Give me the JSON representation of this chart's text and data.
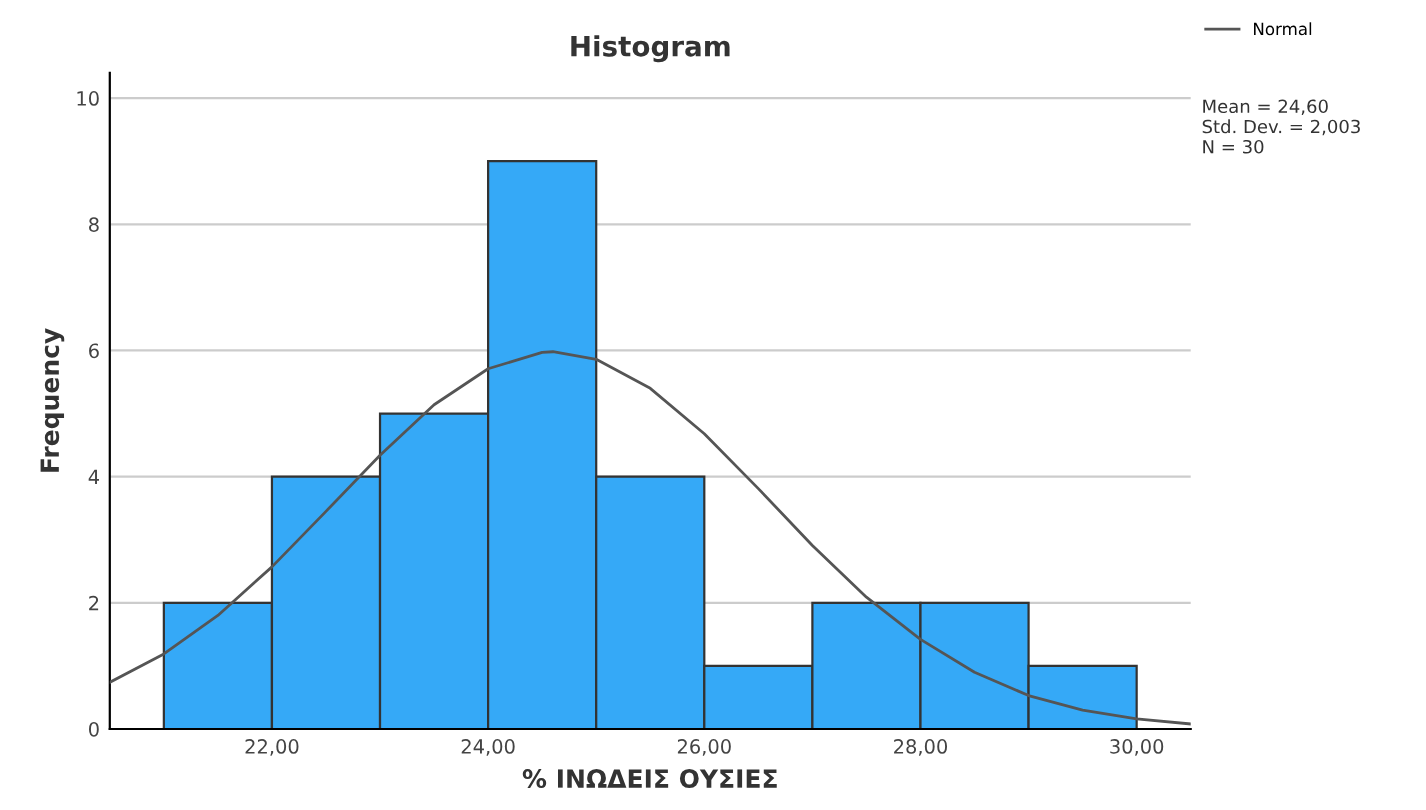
{
  "chart_data": {
    "type": "histogram",
    "title": "Histogram",
    "xlabel": "% ΙΝΩΔΕΙΣ ΟΥΣΙΕΣ",
    "ylabel": "Frequency",
    "bins": [
      21,
      22,
      23,
      24,
      25,
      26,
      27,
      28,
      29,
      30
    ],
    "values": [
      2,
      4,
      5,
      9,
      4,
      1,
      2,
      2,
      1
    ],
    "color": "#35a9f7",
    "series": [
      {
        "name": "Normal",
        "type": "line",
        "color": "#555555",
        "x": [
          20.5,
          21,
          21.5,
          22,
          22.5,
          23,
          23.5,
          24,
          24.5,
          24.6,
          25,
          25.5,
          26,
          26.5,
          27,
          27.5,
          28,
          28.5,
          29,
          29.5,
          30,
          30.5
        ],
        "values": [
          0.74,
          1.19,
          1.8,
          2.57,
          3.45,
          4.34,
          5.14,
          5.71,
          5.97,
          5.98,
          5.86,
          5.4,
          4.68,
          3.81,
          2.91,
          2.09,
          1.42,
          0.9,
          0.53,
          0.3,
          0.16,
          0.08
        ]
      }
    ],
    "annotations": [
      "Mean = 24,60\nStd. Dev. = 2,003\nN = 30"
    ],
    "xlim": [
      20.5,
      30.5
    ],
    "ylim": [
      0,
      10.4
    ],
    "xticks": [
      {
        "value": 22,
        "label": "22,00"
      },
      {
        "value": 24,
        "label": "24,00"
      },
      {
        "value": 26,
        "label": "26,00"
      },
      {
        "value": 28,
        "label": "28,00"
      },
      {
        "value": 30,
        "label": "30,00"
      }
    ],
    "yticks": [
      0,
      2,
      4,
      6,
      8,
      10
    ],
    "grid": "y",
    "legend": "top right",
    "marker": "none",
    "line_style": "solid"
  }
}
